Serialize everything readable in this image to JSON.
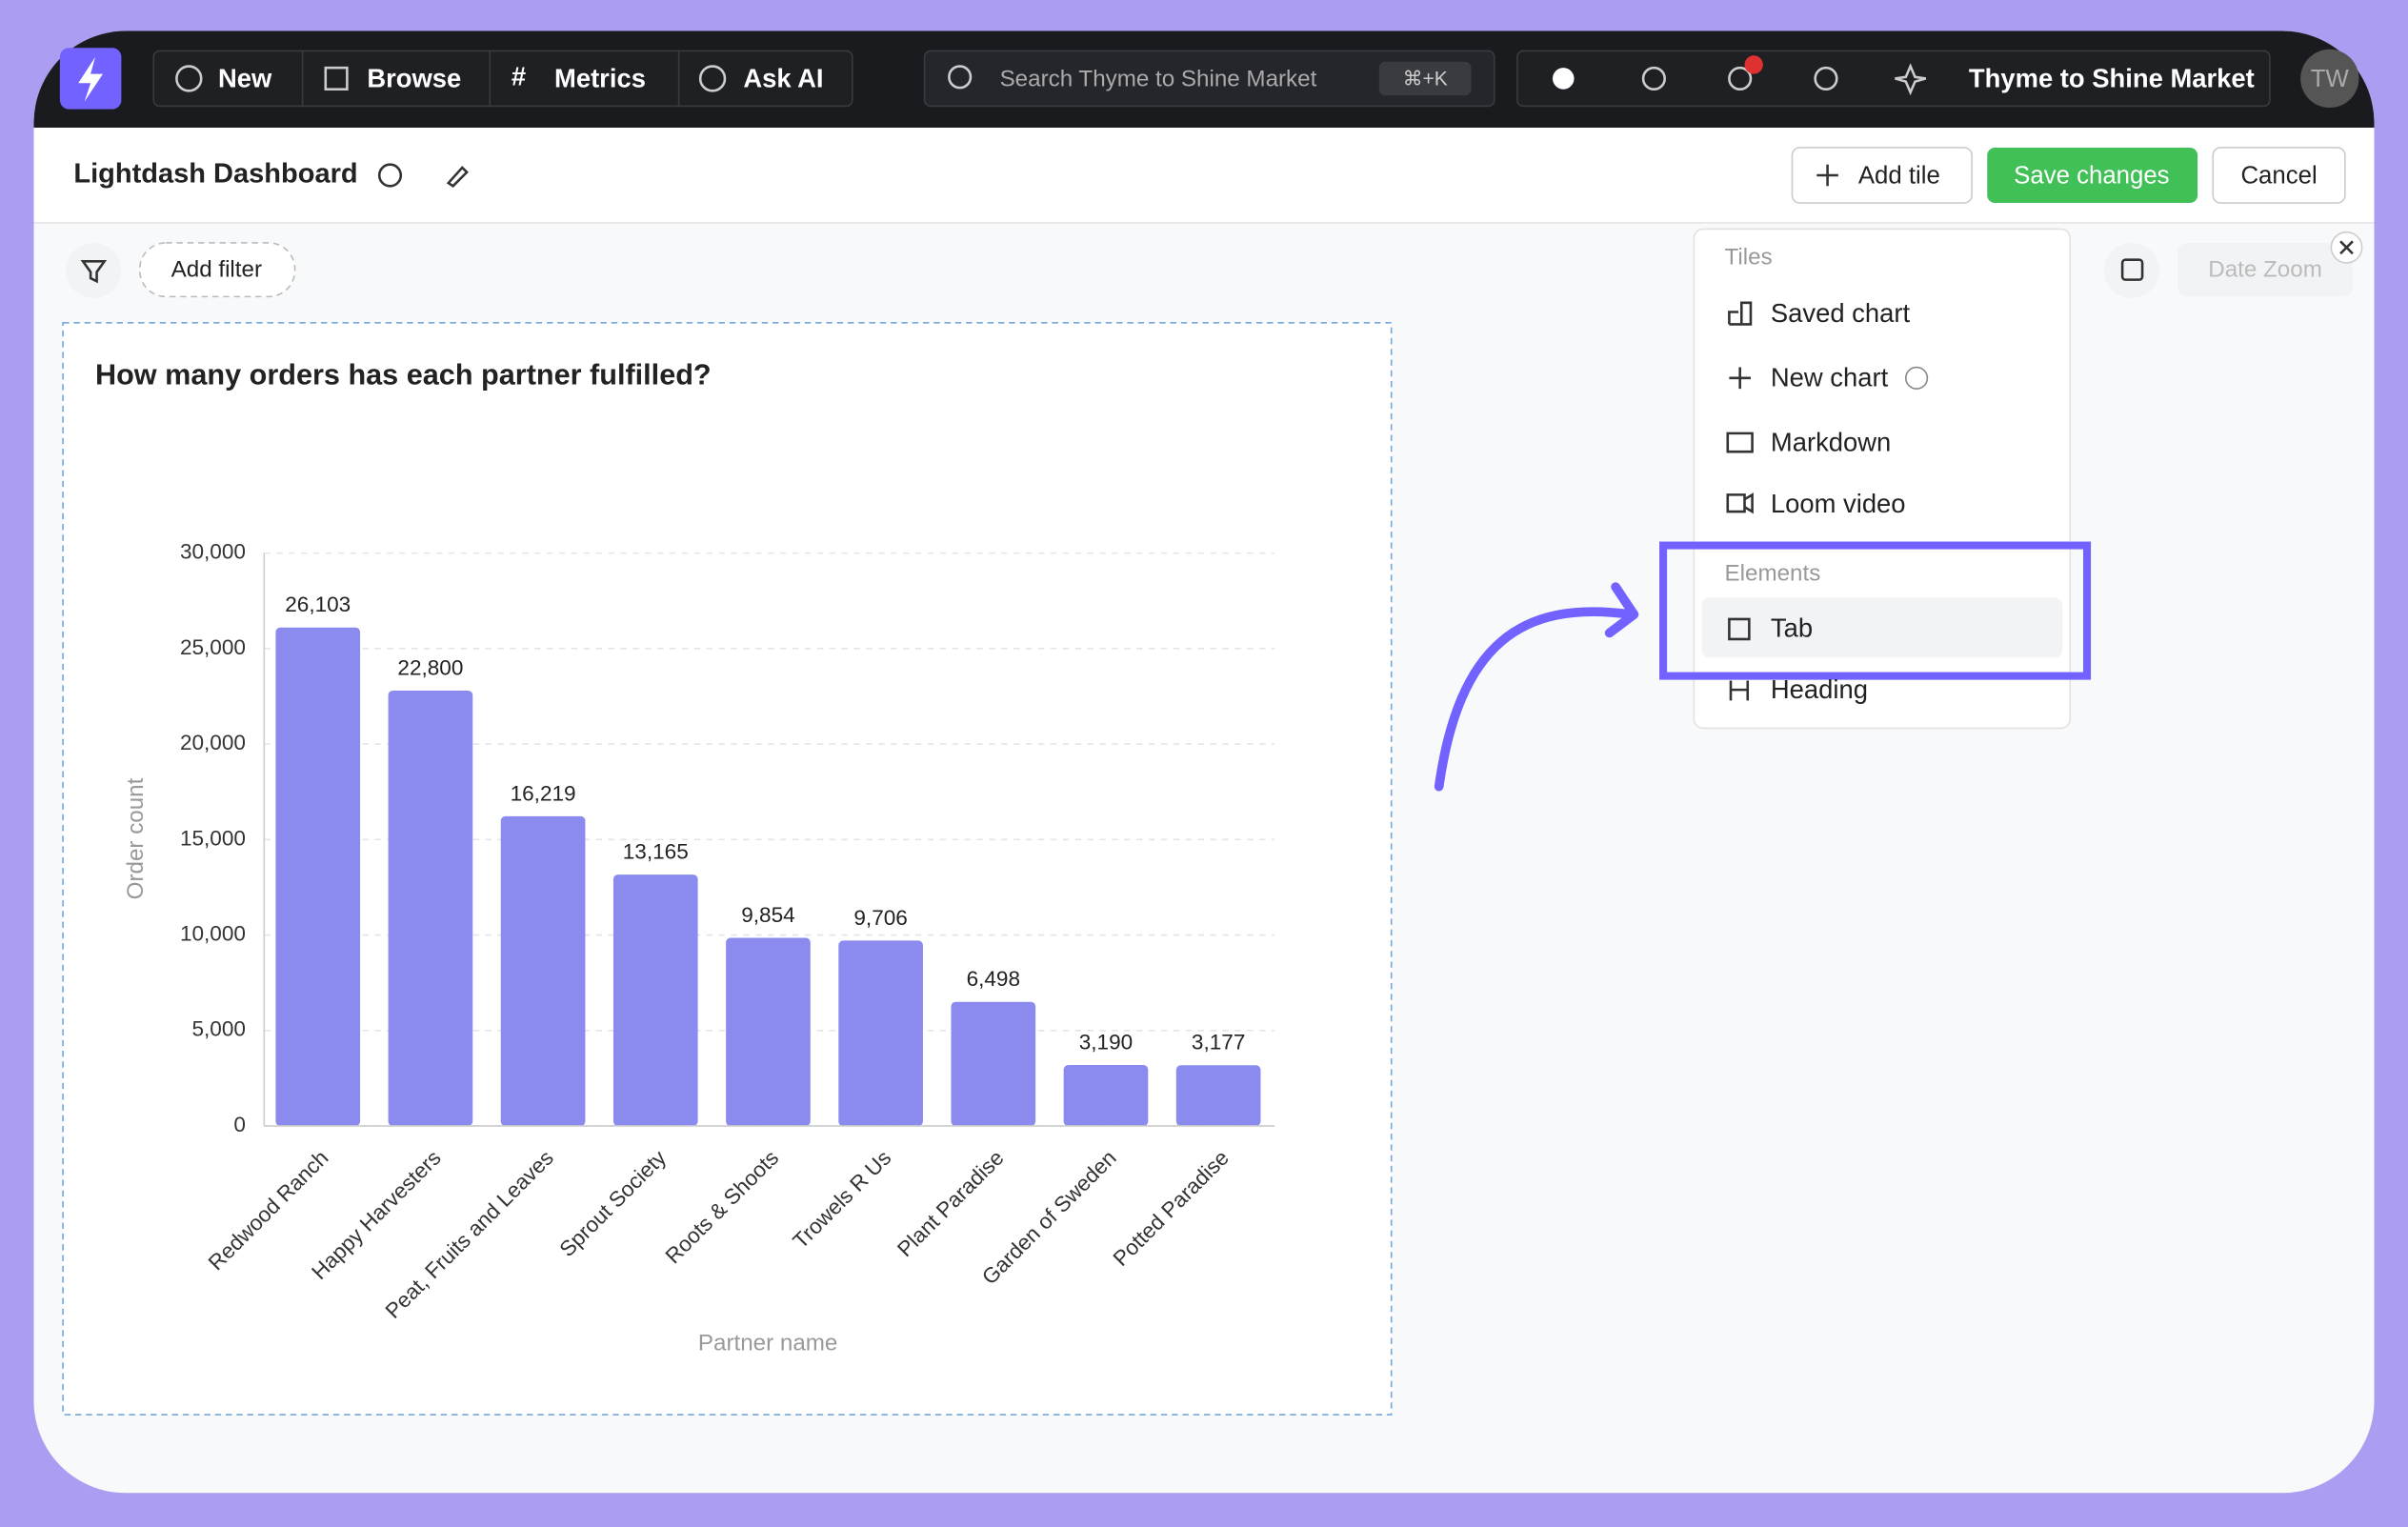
{
  "nav": {
    "items": [
      "New",
      "Browse",
      "Metrics",
      "Ask AI"
    ],
    "search": "Search Thyme to Shine Market",
    "shortcut": "⌘+K",
    "org": "Thyme to Shine Market",
    "avatar": "TW"
  },
  "header": {
    "title": "Lightdash Dashboard",
    "add_tile": "Add tile",
    "save": "Save changes",
    "cancel": "Cancel"
  },
  "filters": {
    "add_filter": "Add filter",
    "date_zoom": "Date Zoom"
  },
  "menu": {
    "tiles_label": "Tiles",
    "tiles": [
      "Saved chart",
      "New chart",
      "Markdown",
      "Loom video"
    ],
    "elements_label": "Elements",
    "elements": [
      "Tab",
      "Heading"
    ]
  },
  "chart_data": {
    "type": "bar",
    "title": "How many orders has each partner fulfilled?",
    "x_label": "Partner name",
    "y_label": "Order count",
    "categories": [
      "Redwood Ranch",
      "Happy Harvesters",
      "Peat, Fruits and Leaves",
      "Sprout Society",
      "Roots & Shoots",
      "Trowels R Us",
      "Plant Paradise",
      "Garden of Sweden",
      "Potted Paradise"
    ],
    "values": [
      26103,
      22800,
      16219,
      13165,
      9854,
      9706,
      6498,
      3190,
      3177
    ],
    "value_labels": [
      "26,103",
      "22,800",
      "16,219",
      "13,165",
      "9,854",
      "9,706",
      "6,498",
      "3,190",
      "3,177"
    ],
    "color": "#8b8bef",
    "ylim": [
      0,
      30000
    ],
    "yticks": [
      0,
      {
        "value": 5000,
        "label": "5,000"
      },
      {
        "value": 10000,
        "label": "10,000"
      },
      {
        "value": 15000,
        "label": "15,000"
      },
      {
        "value": 20000,
        "label": "20,000"
      },
      {
        "value": 25000,
        "label": "25,000"
      },
      {
        "value": 30000,
        "label": "30,000"
      }
    ],
    "grid": true
  }
}
